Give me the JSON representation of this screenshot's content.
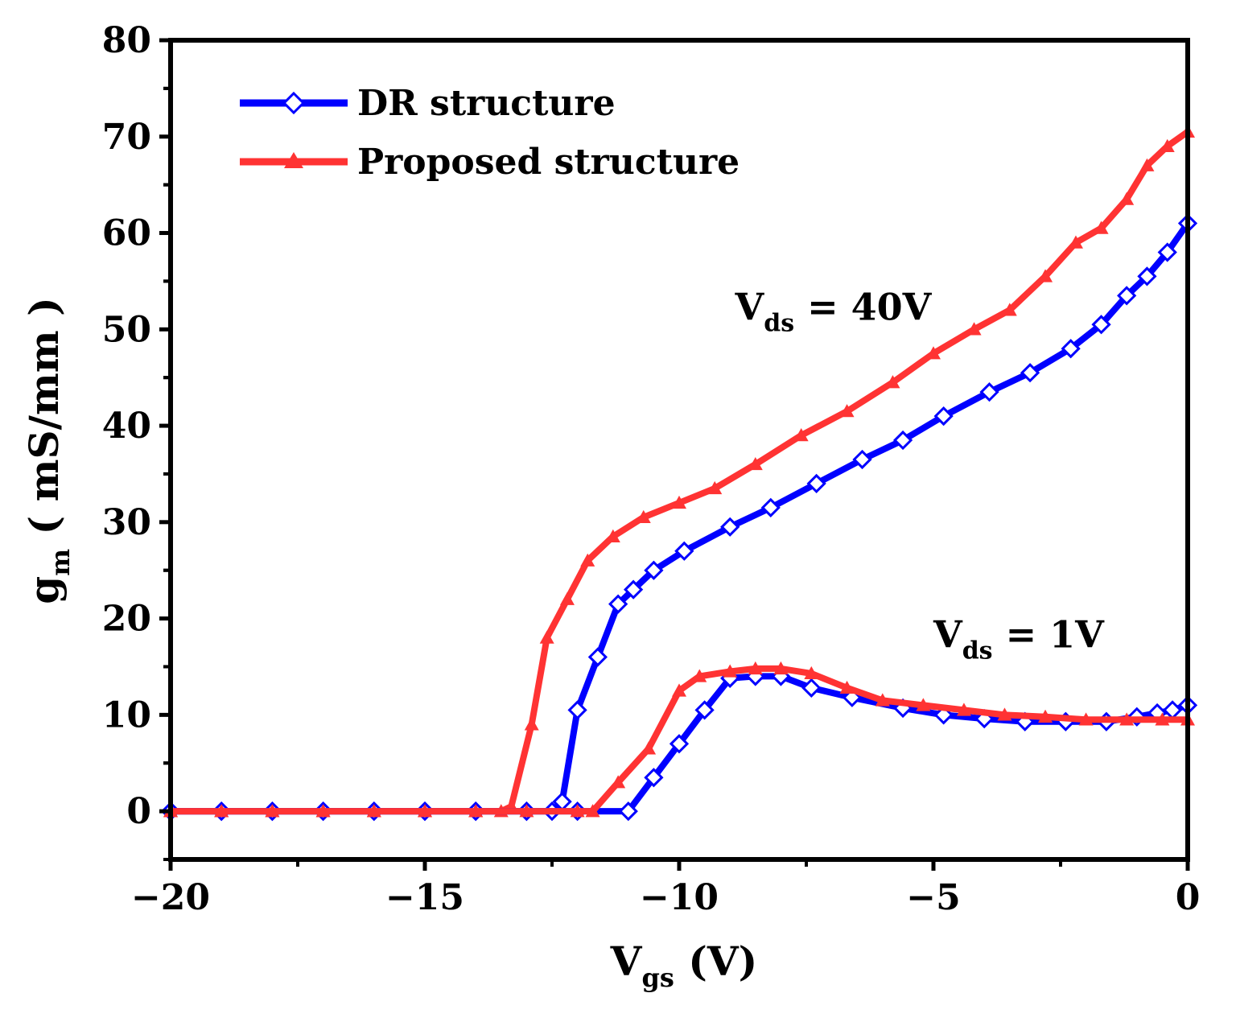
{
  "chart_data": {
    "type": "line",
    "title": "",
    "xlabel": {
      "main": "V",
      "sub": "gs",
      "rest": " (V)"
    },
    "ylabel": {
      "main": "g",
      "sub": "m",
      "rest": " ( mS/mm )"
    },
    "xlim": [
      -20,
      0
    ],
    "ylim": [
      -5,
      80
    ],
    "xticks": [
      -20,
      -15,
      -10,
      -5,
      0
    ],
    "xtick_labels": [
      "−20",
      "−15",
      "−10",
      "−5",
      "0"
    ],
    "yticks": [
      0,
      10,
      20,
      30,
      40,
      50,
      60,
      70,
      80
    ],
    "ytick_labels": [
      "0",
      "10",
      "20",
      "30",
      "40",
      "50",
      "60",
      "70",
      "80"
    ],
    "legend": {
      "position": "top-left",
      "entries": [
        {
          "label": "DR structure",
          "color": "#0000ff",
          "marker": "open-diamond"
        },
        {
          "label": "Proposed structure",
          "color": "#ff3333",
          "marker": "filled-triangle"
        }
      ]
    },
    "annotations": [
      {
        "main": "V",
        "sub": "ds",
        "rest": " = 40V",
        "at": [
          -8.9,
          51
        ]
      },
      {
        "main": "V",
        "sub": "ds",
        "rest": " = 1V",
        "at": [
          -5.0,
          17
        ]
      }
    ],
    "series": [
      {
        "name": "DR structure (Vds = 40V)",
        "legend": "DR structure",
        "color": "#0000ff",
        "marker": "diamond",
        "x": [
          -20,
          -19,
          -18,
          -17,
          -16,
          -15,
          -14,
          -13,
          -12.5,
          -12.3,
          -12.0,
          -11.6,
          -11.2,
          -10.9,
          -10.5,
          -9.9,
          -9.0,
          -8.2,
          -7.3,
          -6.4,
          -5.6,
          -4.8,
          -3.9,
          -3.1,
          -2.3,
          -1.7,
          -1.2,
          -0.8,
          -0.4,
          0
        ],
        "y": [
          0,
          0,
          0,
          0,
          0,
          0,
          0,
          0,
          0,
          1,
          10.5,
          16,
          21.5,
          23,
          25,
          27,
          29.5,
          31.5,
          34,
          36.5,
          38.5,
          41,
          43.5,
          45.5,
          48,
          50.5,
          53.5,
          55.5,
          58,
          61
        ]
      },
      {
        "name": "Proposed structure (Vds = 40V)",
        "legend": "Proposed structure",
        "color": "#ff3333",
        "marker": "triangle",
        "x": [
          -20,
          -19,
          -18,
          -17,
          -16,
          -15,
          -14,
          -13.5,
          -13.3,
          -12.9,
          -12.6,
          -12.2,
          -11.8,
          -11.3,
          -10.7,
          -10.0,
          -9.3,
          -8.5,
          -7.6,
          -6.7,
          -5.8,
          -5.0,
          -4.2,
          -3.5,
          -2.8,
          -2.2,
          -1.7,
          -1.2,
          -0.8,
          -0.4,
          0
        ],
        "y": [
          0,
          0,
          0,
          0,
          0,
          0,
          0,
          0,
          0.5,
          9,
          18,
          22,
          26,
          28.5,
          30.5,
          32,
          33.5,
          36,
          39,
          41.5,
          44.5,
          47.5,
          50,
          52,
          55.5,
          59,
          60.5,
          63.5,
          67,
          69,
          70.5
        ]
      },
      {
        "name": "DR structure (Vds = 1V)",
        "legend": "",
        "color": "#0000ff",
        "marker": "diamond",
        "x": [
          -20,
          -19,
          -18,
          -17,
          -16,
          -15,
          -14,
          -13,
          -12,
          -11.0,
          -10.5,
          -10.0,
          -9.5,
          -9.0,
          -8.5,
          -8.0,
          -7.4,
          -6.6,
          -5.6,
          -4.8,
          -4.0,
          -3.2,
          -2.4,
          -1.6,
          -1.0,
          -0.6,
          -0.3,
          0
        ],
        "y": [
          0,
          0,
          0,
          0,
          0,
          0,
          0,
          0,
          0,
          0,
          3.5,
          7,
          10.5,
          13.8,
          14,
          14,
          12.8,
          11.8,
          10.7,
          10,
          9.6,
          9.3,
          9.3,
          9.3,
          9.8,
          10.2,
          10.5,
          11
        ]
      },
      {
        "name": "Proposed structure (Vds = 1V)",
        "legend": "",
        "color": "#ff3333",
        "marker": "triangle",
        "x": [
          -20,
          -19,
          -18,
          -17,
          -16,
          -15,
          -14,
          -13,
          -12,
          -11.7,
          -11.2,
          -10.6,
          -10.0,
          -9.6,
          -9.0,
          -8.5,
          -8.0,
          -7.4,
          -6.7,
          -6.0,
          -5.2,
          -4.4,
          -3.6,
          -2.8,
          -2.0,
          -1.2,
          -0.5,
          0
        ],
        "y": [
          0,
          0,
          0,
          0,
          0,
          0,
          0,
          0,
          0,
          0,
          3,
          6.5,
          12.5,
          14,
          14.5,
          14.8,
          14.8,
          14.3,
          12.8,
          11.5,
          11,
          10.5,
          10,
          9.8,
          9.5,
          9.5,
          9.5,
          9.5
        ]
      }
    ]
  }
}
